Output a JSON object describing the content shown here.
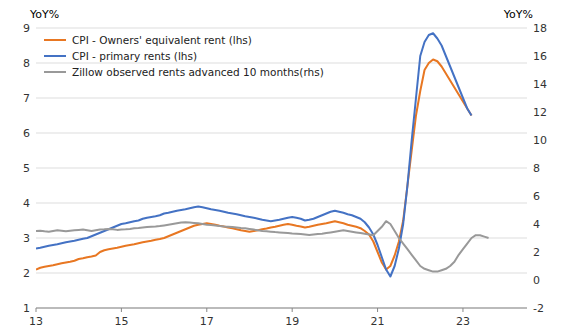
{
  "chart_data": {
    "type": "line",
    "ylabel": "YoY%",
    "y2label": "YoY%",
    "xlim": [
      13,
      24.5
    ],
    "xticks": [
      13,
      15,
      17,
      19,
      21,
      23
    ],
    "ylim": [
      1,
      9
    ],
    "yticks": [
      1,
      2,
      3,
      4,
      5,
      6,
      7,
      8,
      9
    ],
    "y2lim": [
      -2,
      18
    ],
    "y2ticks": [
      -2,
      0,
      2,
      4,
      6,
      8,
      10,
      12,
      14,
      16,
      18
    ],
    "grid": true,
    "legend": "upper left",
    "x": [
      13.0,
      13.1,
      13.2,
      13.3,
      13.4,
      13.5,
      13.6,
      13.7,
      13.8,
      13.9,
      14.0,
      14.1,
      14.2,
      14.3,
      14.4,
      14.5,
      14.6,
      14.7,
      14.8,
      14.9,
      15.0,
      15.1,
      15.2,
      15.3,
      15.4,
      15.5,
      15.6,
      15.7,
      15.8,
      15.9,
      16.0,
      16.1,
      16.2,
      16.3,
      16.4,
      16.5,
      16.6,
      16.7,
      16.8,
      16.9,
      17.0,
      17.1,
      17.2,
      17.3,
      17.4,
      17.5,
      17.6,
      17.7,
      17.8,
      17.9,
      18.0,
      18.1,
      18.2,
      18.3,
      18.4,
      18.5,
      18.6,
      18.7,
      18.8,
      18.9,
      19.0,
      19.1,
      19.2,
      19.3,
      19.4,
      19.5,
      19.6,
      19.7,
      19.8,
      19.9,
      20.0,
      20.1,
      20.2,
      20.3,
      20.4,
      20.5,
      20.6,
      20.7,
      20.8,
      20.9,
      21.0,
      21.1,
      21.2,
      21.3,
      21.4,
      21.5,
      21.6,
      21.7,
      21.8,
      21.9,
      22.0,
      22.1,
      22.2,
      22.3,
      22.4,
      22.5,
      22.6,
      22.7,
      22.8,
      22.9,
      23.0,
      23.1,
      23.2,
      23.3,
      23.4,
      23.5,
      23.6,
      23.7,
      23.8,
      23.9,
      24.0,
      24.1,
      24.2
    ],
    "series": [
      {
        "name": "CPI - Owners' equivalent rent (lhs)",
        "color": "#E87722",
        "values": [
          2.1,
          2.15,
          2.18,
          2.2,
          2.22,
          2.25,
          2.28,
          2.3,
          2.32,
          2.35,
          2.4,
          2.42,
          2.45,
          2.47,
          2.5,
          2.6,
          2.65,
          2.68,
          2.7,
          2.72,
          2.75,
          2.78,
          2.8,
          2.82,
          2.85,
          2.88,
          2.9,
          2.92,
          2.95,
          2.97,
          3.0,
          3.05,
          3.1,
          3.15,
          3.2,
          3.25,
          3.3,
          3.35,
          3.38,
          3.4,
          3.42,
          3.4,
          3.38,
          3.35,
          3.33,
          3.3,
          3.28,
          3.25,
          3.22,
          3.2,
          3.18,
          3.2,
          3.22,
          3.25,
          3.27,
          3.3,
          3.32,
          3.35,
          3.38,
          3.4,
          3.38,
          3.35,
          3.33,
          3.3,
          3.32,
          3.35,
          3.38,
          3.4,
          3.42,
          3.45,
          3.48,
          3.45,
          3.42,
          3.38,
          3.35,
          3.32,
          3.28,
          3.2,
          3.1,
          2.9,
          2.6,
          2.3,
          2.1,
          2.2,
          2.5,
          2.9,
          3.5,
          4.5,
          5.5,
          6.5,
          7.2,
          7.8,
          8.0,
          8.1,
          8.05,
          7.9,
          7.7,
          7.5,
          7.3,
          7.1,
          6.9,
          6.7,
          6.5,
          null,
          null,
          null,
          null,
          null,
          null,
          null,
          null,
          null,
          null
        ]
      },
      {
        "name": "CPI - primary rents (lhs)",
        "color": "#4472C4",
        "values": [
          2.7,
          2.72,
          2.75,
          2.78,
          2.8,
          2.82,
          2.85,
          2.88,
          2.9,
          2.92,
          2.95,
          2.98,
          3.0,
          3.05,
          3.1,
          3.15,
          3.2,
          3.25,
          3.3,
          3.35,
          3.4,
          3.42,
          3.45,
          3.48,
          3.5,
          3.55,
          3.58,
          3.6,
          3.62,
          3.65,
          3.7,
          3.72,
          3.75,
          3.78,
          3.8,
          3.82,
          3.85,
          3.88,
          3.9,
          3.88,
          3.85,
          3.82,
          3.8,
          3.78,
          3.75,
          3.72,
          3.7,
          3.68,
          3.65,
          3.62,
          3.6,
          3.58,
          3.55,
          3.52,
          3.5,
          3.48,
          3.5,
          3.52,
          3.55,
          3.58,
          3.6,
          3.58,
          3.55,
          3.5,
          3.52,
          3.55,
          3.6,
          3.65,
          3.7,
          3.75,
          3.78,
          3.75,
          3.72,
          3.68,
          3.65,
          3.6,
          3.55,
          3.45,
          3.3,
          3.1,
          2.8,
          2.45,
          2.1,
          1.9,
          2.2,
          2.7,
          3.4,
          4.5,
          5.8,
          7.0,
          8.2,
          8.6,
          8.8,
          8.85,
          8.7,
          8.5,
          8.2,
          7.9,
          7.6,
          7.3,
          7.0,
          6.7,
          6.5,
          null,
          null,
          null,
          null,
          null,
          null,
          null,
          null,
          null,
          null
        ]
      },
      {
        "name": "Zillow observed rents advanced 10 months(rhs)",
        "color": "#999999",
        "axis": "y2",
        "values": [
          3.5,
          3.52,
          3.48,
          3.45,
          3.5,
          3.55,
          3.52,
          3.48,
          3.52,
          3.55,
          3.58,
          3.6,
          3.55,
          3.5,
          3.55,
          3.6,
          3.62,
          3.65,
          3.62,
          3.58,
          3.6,
          3.62,
          3.65,
          3.7,
          3.72,
          3.75,
          3.78,
          3.8,
          3.82,
          3.85,
          3.9,
          3.95,
          4.0,
          4.05,
          4.1,
          4.12,
          4.1,
          4.08,
          4.05,
          4.0,
          3.95,
          3.92,
          3.9,
          3.85,
          3.82,
          3.8,
          3.78,
          3.75,
          3.72,
          3.7,
          3.65,
          3.6,
          3.55,
          3.5,
          3.48,
          3.45,
          3.42,
          3.4,
          3.38,
          3.35,
          3.32,
          3.3,
          3.28,
          3.25,
          3.22,
          3.25,
          3.28,
          3.3,
          3.35,
          3.4,
          3.45,
          3.5,
          3.55,
          3.5,
          3.45,
          3.4,
          3.35,
          3.3,
          3.25,
          3.2,
          3.5,
          3.8,
          4.2,
          4.0,
          3.5,
          3.0,
          2.6,
          2.2,
          1.8,
          1.4,
          1.0,
          0.8,
          0.7,
          0.6,
          0.6,
          0.7,
          0.8,
          1.0,
          1.3,
          1.8,
          2.2,
          2.6,
          3.0,
          3.2,
          3.2,
          3.1,
          3.0,
          null,
          null,
          null,
          null,
          null,
          null
        ]
      }
    ]
  }
}
